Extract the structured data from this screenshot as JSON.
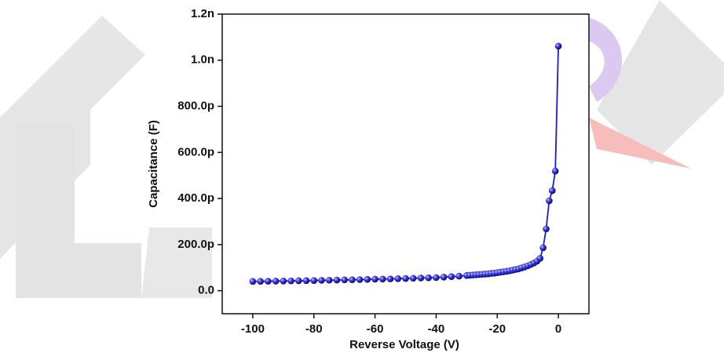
{
  "chart_data": {
    "type": "line",
    "x_label": "Reverse Voltage (V)",
    "y_label": "Capacitance (F)",
    "x": [
      -100,
      -97.5,
      -95,
      -92.5,
      -90,
      -87.5,
      -85,
      -82.5,
      -80,
      -77.5,
      -75,
      -72.5,
      -70,
      -67.5,
      -65,
      -62.5,
      -60,
      -57.5,
      -55,
      -52.5,
      -50,
      -47.5,
      -45,
      -42.5,
      -40,
      -37.5,
      -35,
      -32.5,
      -30,
      -29,
      -28,
      -27,
      -26,
      -25,
      -24,
      -23,
      -22,
      -21,
      -20,
      -19,
      -18,
      -17,
      -16,
      -15,
      -14,
      -13,
      -12,
      -11,
      -10,
      -9,
      -8,
      -7,
      -6,
      -5,
      -4,
      -3,
      -2,
      -1,
      0
    ],
    "series": [
      {
        "color": "#1b1bd6",
        "values": [
          40,
          40.5,
          41,
          41.5,
          42,
          42.5,
          43,
          43.5,
          44,
          45,
          45.5,
          46,
          47,
          47.5,
          48,
          49,
          50,
          50.5,
          51,
          52,
          53,
          54,
          55,
          56,
          57,
          59,
          61,
          63,
          66,
          67,
          68,
          69,
          70,
          71,
          72,
          73,
          75,
          76,
          78,
          80,
          82,
          84,
          86,
          89,
          92,
          95,
          99,
          103,
          108,
          114,
          120,
          128,
          140,
          186,
          268,
          390,
          434,
          519,
          1061
        ]
      }
    ],
    "xlim": [
      -110,
      10
    ],
    "xticks": [
      -100,
      -80,
      -60,
      -40,
      -20,
      0
    ],
    "ylim": [
      -100,
      1200
    ],
    "yticks": [
      {
        "value": 0,
        "label": "0.0"
      },
      {
        "value": 200,
        "label": "200.0p"
      },
      {
        "value": 400,
        "label": "400.0p"
      },
      {
        "value": 600,
        "label": "600.0p"
      },
      {
        "value": 800,
        "label": "800.0p"
      },
      {
        "value": 1000,
        "label": "1.0n"
      },
      {
        "value": 1200,
        "label": "1.2n"
      }
    ]
  }
}
